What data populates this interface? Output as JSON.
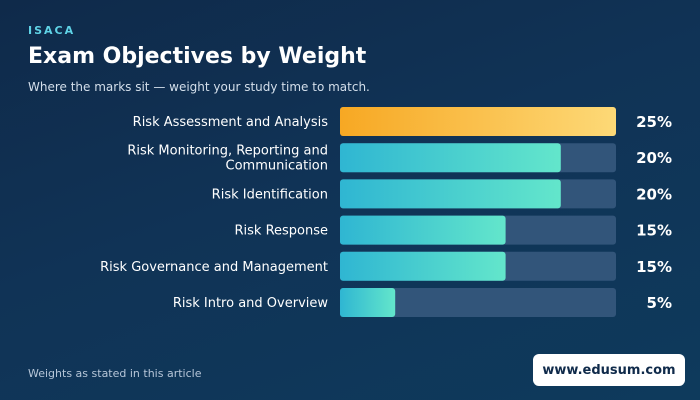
{
  "brand": "ISACA",
  "title": "Exam Objectives by Weight",
  "subtitle": "Where the marks sit — weight your study time to match.",
  "footnote": "Weights as stated in this article",
  "site": "www.edusum.com",
  "colors": {
    "background": "#103356",
    "track": "#32557a",
    "highlight_start": "#f7a823",
    "highlight_end": "#fdd977",
    "bar_start": "#2fb6d2",
    "bar_end": "#63e6cb",
    "brand": "#5fd3e6"
  },
  "chart_data": {
    "type": "bar",
    "orientation": "horizontal",
    "categories": [
      [
        "Risk Assessment and Analysis"
      ],
      [
        "Risk Monitoring, Reporting and",
        "Communication"
      ],
      [
        "Risk Identification"
      ],
      [
        "Risk Response"
      ],
      [
        "Risk Governance and Management"
      ],
      [
        "Risk Intro and Overview"
      ]
    ],
    "values": [
      25,
      20,
      20,
      15,
      15,
      5
    ],
    "value_labels": [
      "25%",
      "20%",
      "20%",
      "15%",
      "15%",
      "5%"
    ],
    "xlim": [
      0,
      25
    ],
    "highlight_index": 0,
    "grid": false,
    "legend": "none"
  }
}
